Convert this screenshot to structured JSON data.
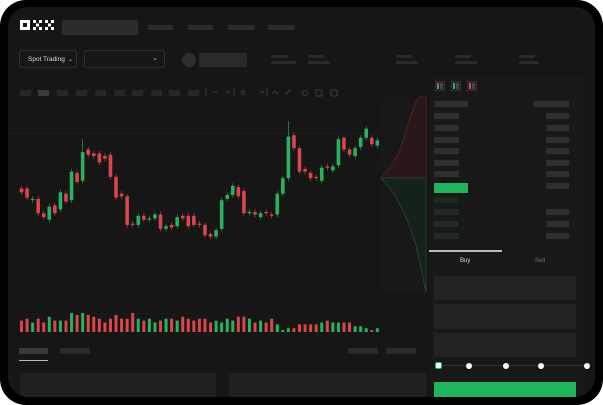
{
  "header": {
    "logo": "OKX",
    "mode_dropdown": "Spot Trading"
  },
  "trade_panel": {
    "buy_tab": "Buy",
    "sell_tab": "Sell",
    "slider_percent": 0
  },
  "colors": {
    "up": "#27b160",
    "down": "#d9464b",
    "background": "#161616",
    "accent": "#22b35e"
  },
  "icons": [
    "okx-logo",
    "chevron-down-icon",
    "orderbook-both-icon",
    "orderbook-bids-icon",
    "orderbook-asks-icon"
  ],
  "chart_data": {
    "type": "candlestick",
    "candles": [
      [
        45,
        42
      ],
      [
        45,
        38
      ],
      [
        36,
        37
      ],
      [
        37,
        26
      ],
      [
        26,
        23
      ],
      [
        21,
        31
      ],
      [
        32,
        26
      ],
      [
        29,
        42
      ],
      [
        41,
        35
      ],
      [
        36,
        58
      ],
      [
        57,
        50
      ],
      [
        51,
        73,
        83
      ],
      [
        75,
        71
      ],
      [
        72,
        70
      ],
      [
        72,
        65
      ],
      [
        70,
        68
      ],
      [
        71,
        54
      ],
      [
        54,
        38
      ],
      [
        41,
        39
      ],
      [
        39,
        17
      ],
      [
        18,
        17
      ],
      [
        17,
        24
      ],
      [
        24,
        21
      ],
      [
        21,
        22
      ],
      [
        22,
        25
      ],
      [
        25,
        14
      ],
      [
        14,
        16
      ],
      [
        17,
        15
      ],
      [
        16,
        23
      ],
      [
        24,
        22
      ],
      [
        24,
        16
      ],
      [
        24,
        17
      ],
      [
        18,
        17
      ],
      [
        17,
        9
      ],
      [
        10,
        8
      ],
      [
        8,
        13
      ],
      [
        14,
        36
      ],
      [
        37,
        40
      ],
      [
        40,
        47
      ],
      [
        46,
        39
      ],
      [
        43,
        26
      ],
      [
        26,
        27
      ],
      [
        27,
        25
      ],
      [
        23,
        26
      ],
      [
        27,
        26
      ],
      [
        25,
        24
      ],
      [
        25,
        41
      ],
      [
        41,
        53
      ],
      [
        53,
        85,
        97
      ],
      [
        86,
        76
      ],
      [
        76,
        58
      ],
      [
        60,
        58
      ],
      [
        57,
        53
      ],
      [
        54,
        53
      ],
      [
        51,
        61
      ],
      [
        62,
        61
      ],
      [
        59,
        62
      ],
      [
        63,
        83
      ],
      [
        84,
        75
      ],
      [
        75,
        71
      ],
      [
        70,
        76
      ],
      [
        77,
        84
      ],
      [
        84,
        91
      ],
      [
        84,
        79
      ],
      [
        78,
        82
      ]
    ],
    "volumes": [
      6,
      7,
      5,
      7,
      5,
      8,
      6,
      6,
      6,
      10,
      9,
      10,
      9,
      8,
      7,
      5,
      7,
      9,
      7,
      7,
      10,
      7,
      6,
      7,
      5,
      6,
      7,
      7,
      6,
      8,
      7,
      6,
      7,
      7,
      5,
      6,
      5,
      7,
      6,
      8,
      8,
      7,
      5,
      6,
      5,
      7,
      4,
      1,
      2,
      2,
      4,
      4,
      4,
      4,
      5,
      6,
      5,
      5,
      5,
      5,
      3,
      3,
      2,
      1,
      2
    ]
  }
}
